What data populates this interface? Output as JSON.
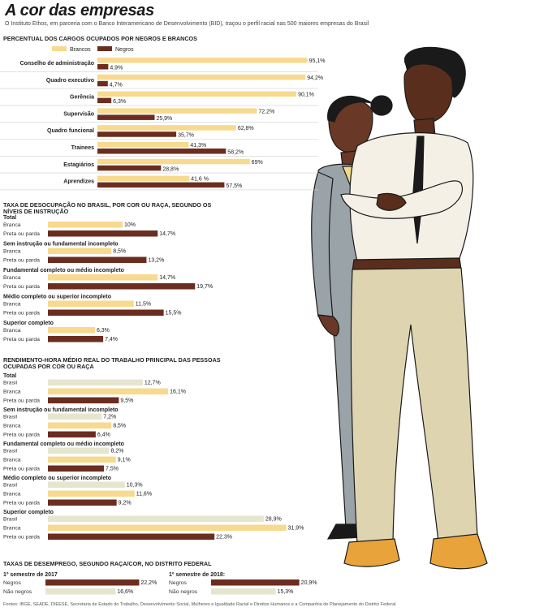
{
  "title": "A cor das empresas",
  "intro": "O Instituto Ethos, em parceria com o Banco Interamericano de Desenvolvimento (BID), traçou o perfil racial nas 500 maiores empresas do Brasil",
  "colors": {
    "brancos": "#f7d98f",
    "negros": "#6b2d1f",
    "brasil": "#e6e6cf",
    "rule": "#cfcfcf"
  },
  "illustration": {
    "name": "illustration-of-two-black-professionals"
  },
  "chart_data": [
    {
      "type": "bar",
      "title": "PERCENTUAL DOS CARGOS OCUPADOS POR NEGROS E BRANCOS",
      "legend": [
        "Brancos",
        "Negros"
      ],
      "categories": [
        "Conselho de administração",
        "Quadro executivo",
        "Gerência",
        "Supervisão",
        "Quadro funcional",
        "Trainees",
        "Estagiários",
        "Aprendizes"
      ],
      "series": [
        {
          "name": "Brancos",
          "values": [
            95.1,
            94.2,
            90.1,
            72.2,
            62.8,
            41.3,
            69,
            41.6
          ],
          "labels": [
            "95,1%",
            "94,2%",
            "90,1%",
            "72,2%",
            "62,8%",
            "41,3%",
            "69%",
            "41,6 %"
          ]
        },
        {
          "name": "Negros",
          "values": [
            4.9,
            4.7,
            6.3,
            25.9,
            35.7,
            58.2,
            28.8,
            57.5
          ],
          "labels": [
            "4,9%",
            "4,7%",
            "6,3%",
            "25,9%",
            "35,7%",
            "58,2%",
            "28,8%",
            "57,5%"
          ]
        }
      ]
    },
    {
      "type": "bar",
      "title": "TAXA DE DESOCUPAÇÃO NO BRASIL, POR COR OU RAÇA, SEGUNDO OS NÍVEIS DE INSTRUÇÃO",
      "groups": [
        {
          "name": "Total",
          "rows": [
            {
              "label": "Branca",
              "value": 10,
              "text": "10%"
            },
            {
              "label": "Preta ou parda",
              "value": 14.7,
              "text": "14,7%"
            }
          ]
        },
        {
          "name": "Sem instrução ou fundamental incompleto",
          "rows": [
            {
              "label": "Branca",
              "value": 8.5,
              "text": "8,5%"
            },
            {
              "label": "Preta ou parda",
              "value": 13.2,
              "text": "13,2%"
            }
          ]
        },
        {
          "name": "Fundamental completo ou médio incompleto",
          "rows": [
            {
              "label": "Branca",
              "value": 14.7,
              "text": "14,7%"
            },
            {
              "label": "Preta ou parda",
              "value": 19.7,
              "text": "19,7%"
            }
          ]
        },
        {
          "name": "Médio completo ou superior incompleto",
          "rows": [
            {
              "label": "Branca",
              "value": 11.5,
              "text": "11,5%"
            },
            {
              "label": "Preta ou parda",
              "value": 15.5,
              "text": "15,5%"
            }
          ]
        },
        {
          "name": "Superior completo",
          "rows": [
            {
              "label": "Branca",
              "value": 6.3,
              "text": "6,3%"
            },
            {
              "label": "Preta ou parda",
              "value": 7.4,
              "text": "7,4%"
            }
          ]
        }
      ]
    },
    {
      "type": "bar",
      "title": "RENDIMENTO-HORA MÉDIO REAL DO TRABALHO PRINCIPAL DAS PESSOAS OCUPADAS POR COR OU RAÇA",
      "groups": [
        {
          "name": "Total",
          "rows": [
            {
              "label": "Brasil",
              "value": 12.7,
              "text": "12,7%"
            },
            {
              "label": "Branca",
              "value": 16.1,
              "text": "16,1%"
            },
            {
              "label": "Preta ou parda",
              "value": 9.5,
              "text": "9,5%"
            }
          ]
        },
        {
          "name": "Sem instrução ou fundamental incompleto",
          "rows": [
            {
              "label": "Brasil",
              "value": 7.2,
              "text": "7,2%"
            },
            {
              "label": "Branca",
              "value": 8.5,
              "text": "8,5%"
            },
            {
              "label": "Preta ou parda",
              "value": 6.4,
              "text": "6,4%"
            }
          ]
        },
        {
          "name": "Fundamental completo ou médio incompleto",
          "rows": [
            {
              "label": "Brasil",
              "value": 8.2,
              "text": "8,2%"
            },
            {
              "label": "Branca",
              "value": 9.1,
              "text": "9,1%"
            },
            {
              "label": "Preta ou parda",
              "value": 7.5,
              "text": "7,5%"
            }
          ]
        },
        {
          "name": "Médio completo ou superior incompleto",
          "rows": [
            {
              "label": "Brasil",
              "value": 10.3,
              "text": "10,3%"
            },
            {
              "label": "Branca",
              "value": 11.6,
              "text": "11,6%"
            },
            {
              "label": "Preta ou parda",
              "value": 9.2,
              "text": "9,2%"
            }
          ]
        },
        {
          "name": "Superior completo",
          "rows": [
            {
              "label": "Brasil",
              "value": 28.9,
              "text": "28,9%"
            },
            {
              "label": "Branca",
              "value": 31.9,
              "text": "31,9%"
            },
            {
              "label": "Preta ou parda",
              "value": 22.3,
              "text": "22,3%"
            }
          ]
        }
      ]
    },
    {
      "type": "bar",
      "title": "TAXAS DE DESEMPREGO, SEGUNDO RAÇA/COR, NO DISTRITO FEDERAL",
      "panels": [
        {
          "name": "1º semestre de 2017",
          "rows": [
            {
              "label": "Negros",
              "value": 22.2,
              "text": "22,2%"
            },
            {
              "label": "Não negros",
              "value": 16.6,
              "text": "16,6%"
            }
          ]
        },
        {
          "name": "1º semestre de 2018:",
          "rows": [
            {
              "label": "Negros",
              "value": 20.9,
              "text": "20,9%"
            },
            {
              "label": "Não negros",
              "value": 15.3,
              "text": "15,3%"
            }
          ]
        }
      ]
    }
  ],
  "sources": "Fontes: IBGE, SEADE, DIEESE, Secretaria de Estado do Trabalho, Desenvolvimento Social, Mulheres e Igualdade Racial e Direitos Humanos e a Companhia de Planejamento do Distrito Federal"
}
